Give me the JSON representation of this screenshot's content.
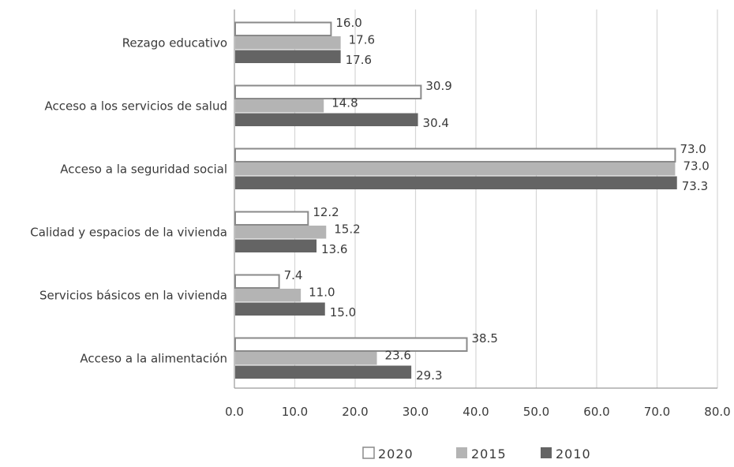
{
  "chart_data": {
    "type": "bar",
    "orientation": "horizontal",
    "categories": [
      "Rezago educativo",
      "Acceso a los servicios de salud",
      "Acceso a la seguridad social",
      "Calidad y espacios de la vivienda",
      "Servicios básicos en la vivienda",
      "Acceso a la alimentación"
    ],
    "series": [
      {
        "name": "2020",
        "values": [
          16.0,
          30.9,
          73.0,
          12.2,
          7.4,
          38.5
        ],
        "labels": [
          "16.0",
          "30.9",
          "73.0",
          "12.2",
          "7.4",
          "38.5"
        ],
        "color": "#ffffff",
        "stroke": "#8a8a8a"
      },
      {
        "name": "2015",
        "values": [
          17.6,
          14.8,
          73.0,
          15.2,
          11.0,
          23.6
        ],
        "labels": [
          "17.6",
          "14.8",
          "73.0",
          "15.2",
          "11.0",
          "23.6"
        ],
        "color": "#b4b4b4",
        "stroke": "#b4b4b4"
      },
      {
        "name": "2010",
        "values": [
          17.6,
          30.4,
          73.3,
          13.6,
          15.0,
          29.3
        ],
        "labels": [
          "17.6",
          "30.4",
          "73.3",
          "13.6",
          "15.0",
          "29.3"
        ],
        "color": "#646464",
        "stroke": "#646464"
      }
    ],
    "xlim": [
      0,
      80
    ],
    "xticks": [
      "0.0",
      "10.0",
      "20.0",
      "30.0",
      "40.0",
      "50.0",
      "60.0",
      "70.0",
      "80.0"
    ],
    "grid": true,
    "legend": "bottom"
  }
}
